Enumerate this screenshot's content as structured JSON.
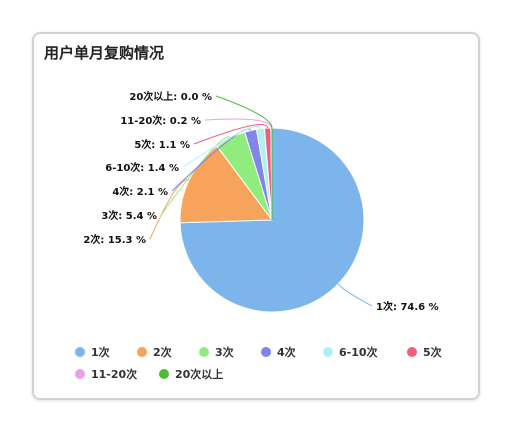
{
  "panel": {
    "title": "用户单月复购情况"
  },
  "chart_data": {
    "type": "pie",
    "title": "用户单月复购情况",
    "unit": "%",
    "categories": [
      "1次",
      "2次",
      "3次",
      "4次",
      "6-10次",
      "5次",
      "11-20次",
      "20次以上"
    ],
    "values": [
      74.6,
      15.3,
      5.4,
      2.1,
      1.4,
      1.1,
      0.2,
      0.0
    ],
    "colors": [
      "#7cb5ec",
      "#f7a35c",
      "#90ed7d",
      "#8085e9",
      "#b0f0f0",
      "#f15c80",
      "#e8a0e8",
      "#4cbb36"
    ],
    "slice_labels": [
      "1次: 74.6 %",
      "2次: 15.3 %",
      "3次: 5.4 %",
      "4次: 2.1 %",
      "6-10次: 1.4 %",
      "5次: 1.1 %",
      "11-20次: 0.2 %",
      "20次以上: 0.0 %"
    ],
    "legend": {
      "position": "bottom",
      "items": [
        "1次",
        "2次",
        "3次",
        "4次",
        "6-10次",
        "5次",
        "11-20次",
        "20次以上"
      ]
    }
  }
}
